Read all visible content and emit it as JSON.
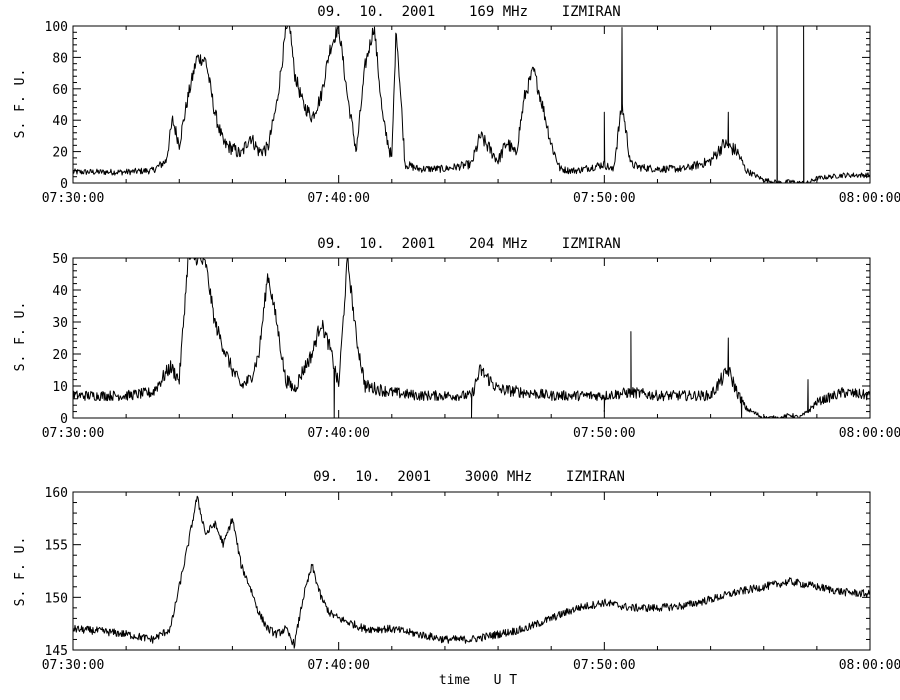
{
  "chart_data": [
    {
      "type": "line",
      "title": "09.  10.  2001    169 MHz    IZMIRAN",
      "ylabel": "S. F. U.",
      "xlabel": "",
      "xlim": [
        "07:30:00",
        "08:00:00"
      ],
      "ylim": [
        0,
        100
      ],
      "x_ticks": [
        "07:30:00",
        "07:40:00",
        "07:50:00",
        "08:00:00"
      ],
      "y_ticks": [
        0,
        20,
        40,
        60,
        80,
        100
      ],
      "grid": false,
      "series": [
        {
          "x": [
            "07:30:00",
            "07:31:00",
            "07:32:00",
            "07:33:00",
            "07:33:30",
            "07:33:45",
            "07:34:00",
            "07:34:20",
            "07:34:40",
            "07:35:00",
            "07:35:20",
            "07:35:40",
            "07:36:00",
            "07:36:20",
            "07:36:40",
            "07:37:00",
            "07:37:20",
            "07:37:40",
            "07:38:00",
            "07:38:10",
            "07:38:20",
            "07:38:40",
            "07:39:00",
            "07:39:20",
            "07:39:40",
            "07:40:00",
            "07:40:20",
            "07:40:40",
            "07:41:00",
            "07:41:20",
            "07:41:40",
            "07:42:00",
            "07:42:10",
            "07:42:30",
            "07:43:00",
            "07:44:00",
            "07:45:00",
            "07:45:20",
            "07:45:40",
            "07:46:00",
            "07:46:20",
            "07:46:40",
            "07:47:00",
            "07:47:20",
            "07:47:40",
            "07:48:00",
            "07:48:20",
            "07:48:40",
            "07:49:00",
            "07:50:00",
            "07:50:20",
            "07:50:40",
            "07:51:00",
            "07:51:20",
            "07:52:00",
            "07:53:00",
            "07:54:00",
            "07:54:30",
            "07:55:00",
            "07:55:20",
            "07:55:40",
            "07:56:00",
            "07:56:20",
            "07:56:40",
            "07:57:00",
            "07:57:20",
            "07:57:40",
            "07:58:00",
            "07:59:00",
            "08:00:00"
          ],
          "values": [
            7,
            7,
            7,
            8,
            14,
            40,
            25,
            55,
            80,
            78,
            45,
            25,
            22,
            18,
            30,
            20,
            22,
            50,
            95,
            100,
            70,
            50,
            42,
            55,
            85,
            100,
            55,
            20,
            75,
            100,
            40,
            15,
            100,
            12,
            9,
            9,
            12,
            30,
            22,
            14,
            26,
            18,
            55,
            72,
            50,
            25,
            9,
            8,
            8,
            12,
            8,
            50,
            12,
            10,
            9,
            9,
            14,
            25,
            20,
            8,
            5,
            2,
            1,
            0,
            1,
            0,
            0,
            3,
            5,
            5
          ]
        }
      ],
      "spikes": [
        {
          "x": "07:50:00",
          "value": 45
        },
        {
          "x": "07:50:40",
          "value": 99
        },
        {
          "x": "07:54:40",
          "value": 45
        },
        {
          "x": "07:56:30",
          "value": 100
        },
        {
          "x": "07:57:30",
          "value": 100
        }
      ]
    },
    {
      "type": "line",
      "title": "09.  10.  2001    204 MHz    IZMIRAN",
      "ylabel": "S. F. U.",
      "xlabel": "",
      "xlim": [
        "07:30:00",
        "08:00:00"
      ],
      "ylim": [
        0,
        50
      ],
      "x_ticks": [
        "07:30:00",
        "07:40:00",
        "07:50:00",
        "08:00:00"
      ],
      "y_ticks": [
        0,
        10,
        20,
        30,
        40,
        50
      ],
      "grid": false,
      "series": [
        {
          "x": [
            "07:30:00",
            "07:31:00",
            "07:32:00",
            "07:33:00",
            "07:33:40",
            "07:34:00",
            "07:34:20",
            "07:34:40",
            "07:35:00",
            "07:35:20",
            "07:35:40",
            "07:36:00",
            "07:36:20",
            "07:36:40",
            "07:37:00",
            "07:37:20",
            "07:37:40",
            "07:38:00",
            "07:38:20",
            "07:38:40",
            "07:39:00",
            "07:39:20",
            "07:39:40",
            "07:40:00",
            "07:40:20",
            "07:40:40",
            "07:41:00",
            "07:41:30",
            "07:42:00",
            "07:43:00",
            "07:44:00",
            "07:45:00",
            "07:45:20",
            "07:45:40",
            "07:46:00",
            "07:47:00",
            "07:48:00",
            "07:49:00",
            "07:50:00",
            "07:51:00",
            "07:52:00",
            "07:53:00",
            "07:54:00",
            "07:54:40",
            "07:55:00",
            "07:55:20",
            "07:56:00",
            "07:56:40",
            "07:57:00",
            "07:57:20",
            "07:57:40",
            "07:58:00",
            "07:59:00",
            "08:00:00"
          ],
          "values": [
            7,
            7,
            7,
            8,
            16,
            12,
            50,
            50,
            48,
            30,
            22,
            15,
            10,
            12,
            20,
            45,
            30,
            12,
            9,
            15,
            20,
            30,
            22,
            10,
            50,
            25,
            10,
            9,
            8,
            7,
            7,
            7,
            15,
            12,
            9,
            8,
            7,
            7,
            7,
            8,
            7,
            7,
            7,
            15,
            8,
            3,
            0,
            0,
            1,
            0,
            2,
            5,
            8,
            7
          ]
        }
      ],
      "spikes": [
        {
          "x": "07:39:50",
          "value": -2
        },
        {
          "x": "07:45:00",
          "value": -2
        },
        {
          "x": "07:50:00",
          "value": 2
        },
        {
          "x": "07:51:00",
          "value": 27
        },
        {
          "x": "07:54:40",
          "value": 25
        },
        {
          "x": "07:55:10",
          "value": -2
        },
        {
          "x": "07:57:40",
          "value": 12
        }
      ]
    },
    {
      "type": "line",
      "title": "09.  10.  2001    3000 MHz    IZMIRAN",
      "ylabel": "S. F. U.",
      "xlabel": "time   U T",
      "xlim": [
        "07:30:00",
        "08:00:00"
      ],
      "ylim": [
        145,
        160
      ],
      "x_ticks": [
        "07:30:00",
        "07:40:00",
        "07:50:00",
        "08:00:00"
      ],
      "y_ticks": [
        145,
        150,
        155,
        160
      ],
      "grid": false,
      "series": [
        {
          "x": [
            "07:30:00",
            "07:31:00",
            "07:32:00",
            "07:33:00",
            "07:33:40",
            "07:34:00",
            "07:34:20",
            "07:34:40",
            "07:35:00",
            "07:35:20",
            "07:35:40",
            "07:36:00",
            "07:36:20",
            "07:36:40",
            "07:37:00",
            "07:37:20",
            "07:37:40",
            "07:38:00",
            "07:38:20",
            "07:38:40",
            "07:39:00",
            "07:39:20",
            "07:39:40",
            "07:40:00",
            "07:41:00",
            "07:42:00",
            "07:43:00",
            "07:44:00",
            "07:45:00",
            "07:46:00",
            "07:47:00",
            "07:48:00",
            "07:49:00",
            "07:50:00",
            "07:51:00",
            "07:52:00",
            "07:53:00",
            "07:54:00",
            "07:55:00",
            "07:56:00",
            "07:57:00",
            "07:58:00",
            "07:59:00",
            "08:00:00"
          ],
          "values": [
            147,
            146.8,
            146.5,
            146,
            147,
            151,
            155,
            159.5,
            156,
            157,
            155,
            157.5,
            153,
            151,
            148.5,
            147,
            146.5,
            147,
            145.5,
            150,
            153,
            150,
            148.5,
            148,
            147,
            147,
            146.5,
            146,
            146,
            146.5,
            147,
            148,
            149,
            149.5,
            149,
            149,
            149.2,
            149.8,
            150.5,
            151,
            151.5,
            151,
            150.5,
            150.3
          ]
        }
      ]
    }
  ]
}
